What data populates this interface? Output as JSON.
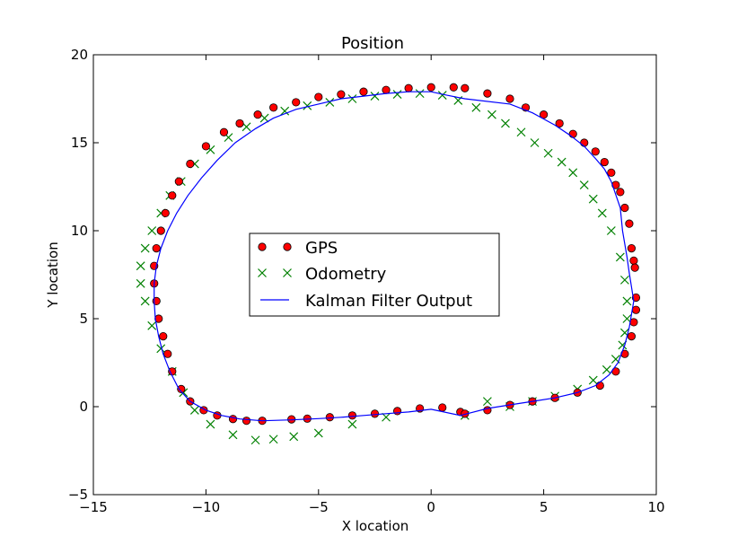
{
  "chart_data": {
    "type": "scatter",
    "title": "Position",
    "xlabel": "X location",
    "ylabel": "Y location",
    "xlim": [
      -15,
      10
    ],
    "ylim": [
      -5,
      20
    ],
    "xticks": [
      -15,
      -10,
      -5,
      0,
      5,
      10
    ],
    "yticks": [
      -5,
      0,
      5,
      10,
      15,
      20
    ],
    "xtick_labels": [
      "−15",
      "−10",
      "−5",
      "0",
      "5",
      "10"
    ],
    "ytick_labels": [
      "−5",
      "0",
      "5",
      "10",
      "15",
      "20"
    ],
    "grid": false,
    "legend_position": "center",
    "series": [
      {
        "name": "GPS",
        "marker": "circle",
        "color": "#ff0000",
        "edge_color": "#000000",
        "x": [
          1.3,
          0.5,
          -0.5,
          -1.5,
          -2.5,
          -3.5,
          -4.5,
          -5.5,
          -6.2,
          -7.5,
          -8.2,
          -8.8,
          -9.5,
          -10.1,
          -10.7,
          -11.1,
          -11.5,
          -11.7,
          -11.9,
          -12.1,
          -12.2,
          -12.3,
          -12.3,
          -12.2,
          -12.0,
          -11.8,
          -11.5,
          -11.2,
          -10.7,
          -10.0,
          -9.2,
          -8.5,
          -7.7,
          -7.0,
          -6.0,
          -5.0,
          -4.0,
          -3.0,
          -2.0,
          -1.0,
          0.0,
          1.0,
          1.5,
          2.5,
          3.5,
          4.2,
          5.0,
          5.7,
          6.3,
          6.8,
          7.3,
          7.7,
          8.0,
          8.2,
          8.4,
          8.6,
          8.8,
          8.9,
          9.0,
          9.05,
          9.1,
          9.1,
          9.0,
          8.9,
          8.6,
          8.2,
          7.5,
          6.5,
          5.5,
          4.5,
          3.5,
          2.5,
          1.5
        ],
        "y": [
          -0.3,
          -0.05,
          -0.1,
          -0.25,
          -0.4,
          -0.5,
          -0.6,
          -0.68,
          -0.72,
          -0.8,
          -0.8,
          -0.7,
          -0.5,
          -0.2,
          0.3,
          1.0,
          2.0,
          3.0,
          4.0,
          5.0,
          6.0,
          7.0,
          8.0,
          9.0,
          10.0,
          11.0,
          12.0,
          12.8,
          13.8,
          14.8,
          15.6,
          16.1,
          16.6,
          17.0,
          17.3,
          17.6,
          17.75,
          17.9,
          18.0,
          18.1,
          18.15,
          18.15,
          18.1,
          17.8,
          17.5,
          17.0,
          16.6,
          16.1,
          15.5,
          15.0,
          14.5,
          13.9,
          13.3,
          12.6,
          12.2,
          11.3,
          10.4,
          9.0,
          8.3,
          7.9,
          6.2,
          5.5,
          4.8,
          4.0,
          3.0,
          2.0,
          1.2,
          0.8,
          0.5,
          0.3,
          0.1,
          -0.2,
          -0.4
        ]
      },
      {
        "name": "Odometry",
        "marker": "x",
        "color": "#008000",
        "x": [
          -6.1,
          -7.0,
          -7.8,
          -8.8,
          -9.8,
          -10.5,
          -11.0,
          -11.5,
          -12.0,
          -12.4,
          -12.7,
          -12.9,
          -12.9,
          -12.7,
          -12.4,
          -12.0,
          -11.6,
          -11.1,
          -10.5,
          -9.8,
          -9.0,
          -8.2,
          -7.4,
          -6.5,
          -5.5,
          -4.5,
          -3.5,
          -2.5,
          -1.5,
          -0.5,
          0.5,
          1.2,
          2.0,
          2.7,
          3.3,
          4.0,
          4.6,
          5.2,
          5.8,
          6.3,
          6.8,
          7.2,
          7.6,
          8.0,
          8.4,
          8.6,
          8.7,
          8.7,
          8.6,
          8.5,
          8.2,
          7.8,
          7.2,
          6.5,
          5.5,
          4.5,
          3.5,
          2.5,
          1.5,
          -2.0,
          -3.5,
          -5.0
        ],
        "y": [
          -1.7,
          -1.85,
          -1.9,
          -1.6,
          -1.0,
          -0.2,
          0.8,
          2.0,
          3.3,
          4.6,
          6.0,
          7.0,
          8.0,
          9.0,
          10.0,
          11.0,
          12.0,
          12.8,
          13.8,
          14.6,
          15.3,
          15.9,
          16.4,
          16.8,
          17.1,
          17.3,
          17.5,
          17.65,
          17.75,
          17.8,
          17.7,
          17.4,
          17.0,
          16.6,
          16.1,
          15.6,
          15.0,
          14.4,
          13.9,
          13.3,
          12.6,
          11.8,
          11.0,
          10.0,
          8.5,
          7.2,
          6.0,
          5.0,
          4.2,
          3.5,
          2.7,
          2.1,
          1.5,
          1.0,
          0.6,
          0.3,
          0.0,
          0.3,
          -0.5,
          -0.6,
          -1.0,
          -1.5
        ]
      },
      {
        "name": "Kalman Filter Output",
        "marker": "line",
        "color": "#0000ff",
        "x": [
          -6.2,
          -7.5,
          -8.5,
          -9.3,
          -10.0,
          -10.7,
          -11.2,
          -11.6,
          -11.9,
          -12.1,
          -12.25,
          -12.3,
          -12.3,
          -12.2,
          -12.0,
          -11.7,
          -11.3,
          -10.8,
          -10.2,
          -9.5,
          -8.7,
          -7.8,
          -7.0,
          -6.0,
          -5.0,
          -4.0,
          -3.0,
          -2.0,
          -1.0,
          0.0,
          0.7,
          1.5,
          3.5,
          4.5,
          5.5,
          6.2,
          6.8,
          7.3,
          7.7,
          8.0,
          8.4,
          8.5,
          8.7,
          8.8,
          8.9,
          9.0,
          8.8,
          8.6,
          8.3,
          7.9,
          7.3,
          6.5,
          5.5,
          4.5,
          3.5,
          2.5,
          1.3,
          0.0,
          -1.0,
          -2.0,
          -3.0,
          -4.0,
          -5.0,
          -6.2
        ],
        "y": [
          -0.75,
          -0.8,
          -0.7,
          -0.5,
          -0.2,
          0.3,
          1.0,
          2.0,
          3.0,
          4.0,
          5.0,
          6.0,
          7.0,
          8.0,
          9.0,
          10.0,
          11.0,
          12.0,
          13.0,
          14.0,
          15.0,
          15.8,
          16.4,
          16.9,
          17.2,
          17.5,
          17.65,
          17.8,
          17.9,
          17.9,
          17.7,
          17.5,
          17.2,
          16.7,
          16.0,
          15.4,
          14.8,
          14.1,
          13.5,
          12.8,
          11.3,
          10.0,
          8.5,
          7.6,
          6.8,
          6.0,
          4.5,
          3.5,
          2.5,
          1.8,
          1.2,
          0.8,
          0.5,
          0.3,
          0.1,
          -0.1,
          -0.5,
          -0.15,
          -0.3,
          -0.4,
          -0.5,
          -0.6,
          -0.68,
          -0.75
        ]
      }
    ]
  }
}
